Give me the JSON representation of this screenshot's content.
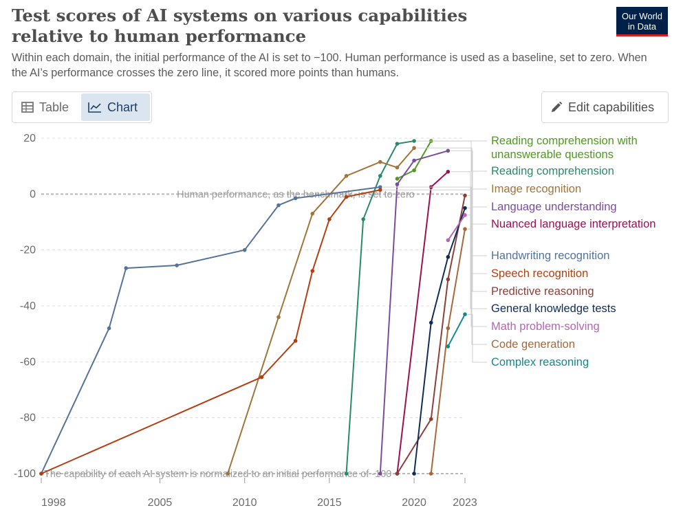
{
  "header": {
    "title": "Test scores of AI systems on various capabilities relative to human performance",
    "subtitle": "Within each domain, the initial performance of the AI is set to −100. Human performance is used as a baseline, set to zero. When the AI’s performance crosses the zero line, it scored more points than humans.",
    "logo_line1": "Our World",
    "logo_line2": "in Data"
  },
  "tabs": {
    "table_label": "Table",
    "chart_label": "Chart",
    "active": "chart"
  },
  "edit_button": {
    "label": "Edit capabilities",
    "icon": "pencil-icon"
  },
  "chart_data": {
    "type": "line",
    "title": "Test scores of AI systems on various capabilities relative to human performance",
    "xlabel": "",
    "ylabel": "",
    "xlim": [
      1998,
      2023
    ],
    "ylim": [
      -100,
      20
    ],
    "x_ticks": [
      1998,
      2005,
      2010,
      2015,
      2020,
      2023
    ],
    "y_ticks": [
      -100,
      -80,
      -60,
      -40,
      -20,
      0,
      20
    ],
    "annotations": {
      "zero_line": "Human performance, as the benchmark, is set to zero",
      "bottom_line": "The capability of each AI system is normalized to an initial performance of -100"
    },
    "series": [
      {
        "name": "Reading comprehension with unanswerable questions",
        "color": "#4e9a1c",
        "points": [
          [
            2019,
            5.5
          ],
          [
            2020,
            8.5
          ],
          [
            2021,
            19
          ]
        ]
      },
      {
        "name": "Reading comprehension",
        "color": "#2a8a67",
        "points": [
          [
            2016,
            -100
          ],
          [
            2017,
            -9
          ],
          [
            2018,
            6.5
          ],
          [
            2019,
            18
          ],
          [
            2020,
            19
          ]
        ]
      },
      {
        "name": "Image recognition",
        "color": "#a0743a",
        "points": [
          [
            2009,
            -100
          ],
          [
            2012,
            -44
          ],
          [
            2014,
            -7
          ],
          [
            2016,
            6.5
          ],
          [
            2018,
            11.5
          ],
          [
            2019,
            9.5
          ],
          [
            2020,
            16.5
          ]
        ]
      },
      {
        "name": "Language understanding",
        "color": "#7a4ca0",
        "points": [
          [
            2018,
            -100
          ],
          [
            2019,
            3.5
          ],
          [
            2020,
            12
          ],
          [
            2022,
            15.5
          ]
        ]
      },
      {
        "name": "Nuanced language interpretation",
        "color": "#9c0f50",
        "points": [
          [
            2019,
            -100
          ],
          [
            2021,
            2.5
          ],
          [
            2022,
            8
          ]
        ]
      },
      {
        "name": "Handwriting recognition",
        "color": "#557299",
        "points": [
          [
            1998,
            -100
          ],
          [
            2002,
            -48
          ],
          [
            2003,
            -26.5
          ],
          [
            2006,
            -25.5
          ],
          [
            2010,
            -20
          ],
          [
            2012,
            -4
          ],
          [
            2013,
            -1.5
          ],
          [
            2018,
            2.5
          ]
        ]
      },
      {
        "name": "Speech recognition",
        "color": "#b23f12",
        "points": [
          [
            1998,
            -100
          ],
          [
            2011,
            -65.5
          ],
          [
            2013,
            -52.5
          ],
          [
            2014,
            -27.5
          ],
          [
            2015,
            -9
          ],
          [
            2016,
            -1
          ],
          [
            2018,
            1.5
          ]
        ]
      },
      {
        "name": "Predictive reasoning",
        "color": "#8c3f3a",
        "points": [
          [
            2019,
            -100
          ],
          [
            2021,
            -80.5
          ],
          [
            2022,
            -30.5
          ],
          [
            2023,
            -0.5
          ]
        ]
      },
      {
        "name": "General knowledge tests",
        "color": "#0f2c56",
        "points": [
          [
            2020,
            -100
          ],
          [
            2021,
            -46
          ],
          [
            2022,
            -22.5
          ],
          [
            2023,
            -5
          ]
        ]
      },
      {
        "name": "Math problem-solving",
        "color": "#b765b2",
        "points": [
          [
            2022,
            -16.5
          ],
          [
            2023,
            -7.5
          ]
        ]
      },
      {
        "name": "Code generation",
        "color": "#a8673a",
        "points": [
          [
            2021,
            -100
          ],
          [
            2022,
            -48
          ],
          [
            2023,
            -12.5
          ]
        ]
      },
      {
        "name": "Complex reasoning",
        "color": "#12888c",
        "points": [
          [
            2022,
            -54.5
          ],
          [
            2023,
            -43
          ]
        ]
      }
    ]
  }
}
